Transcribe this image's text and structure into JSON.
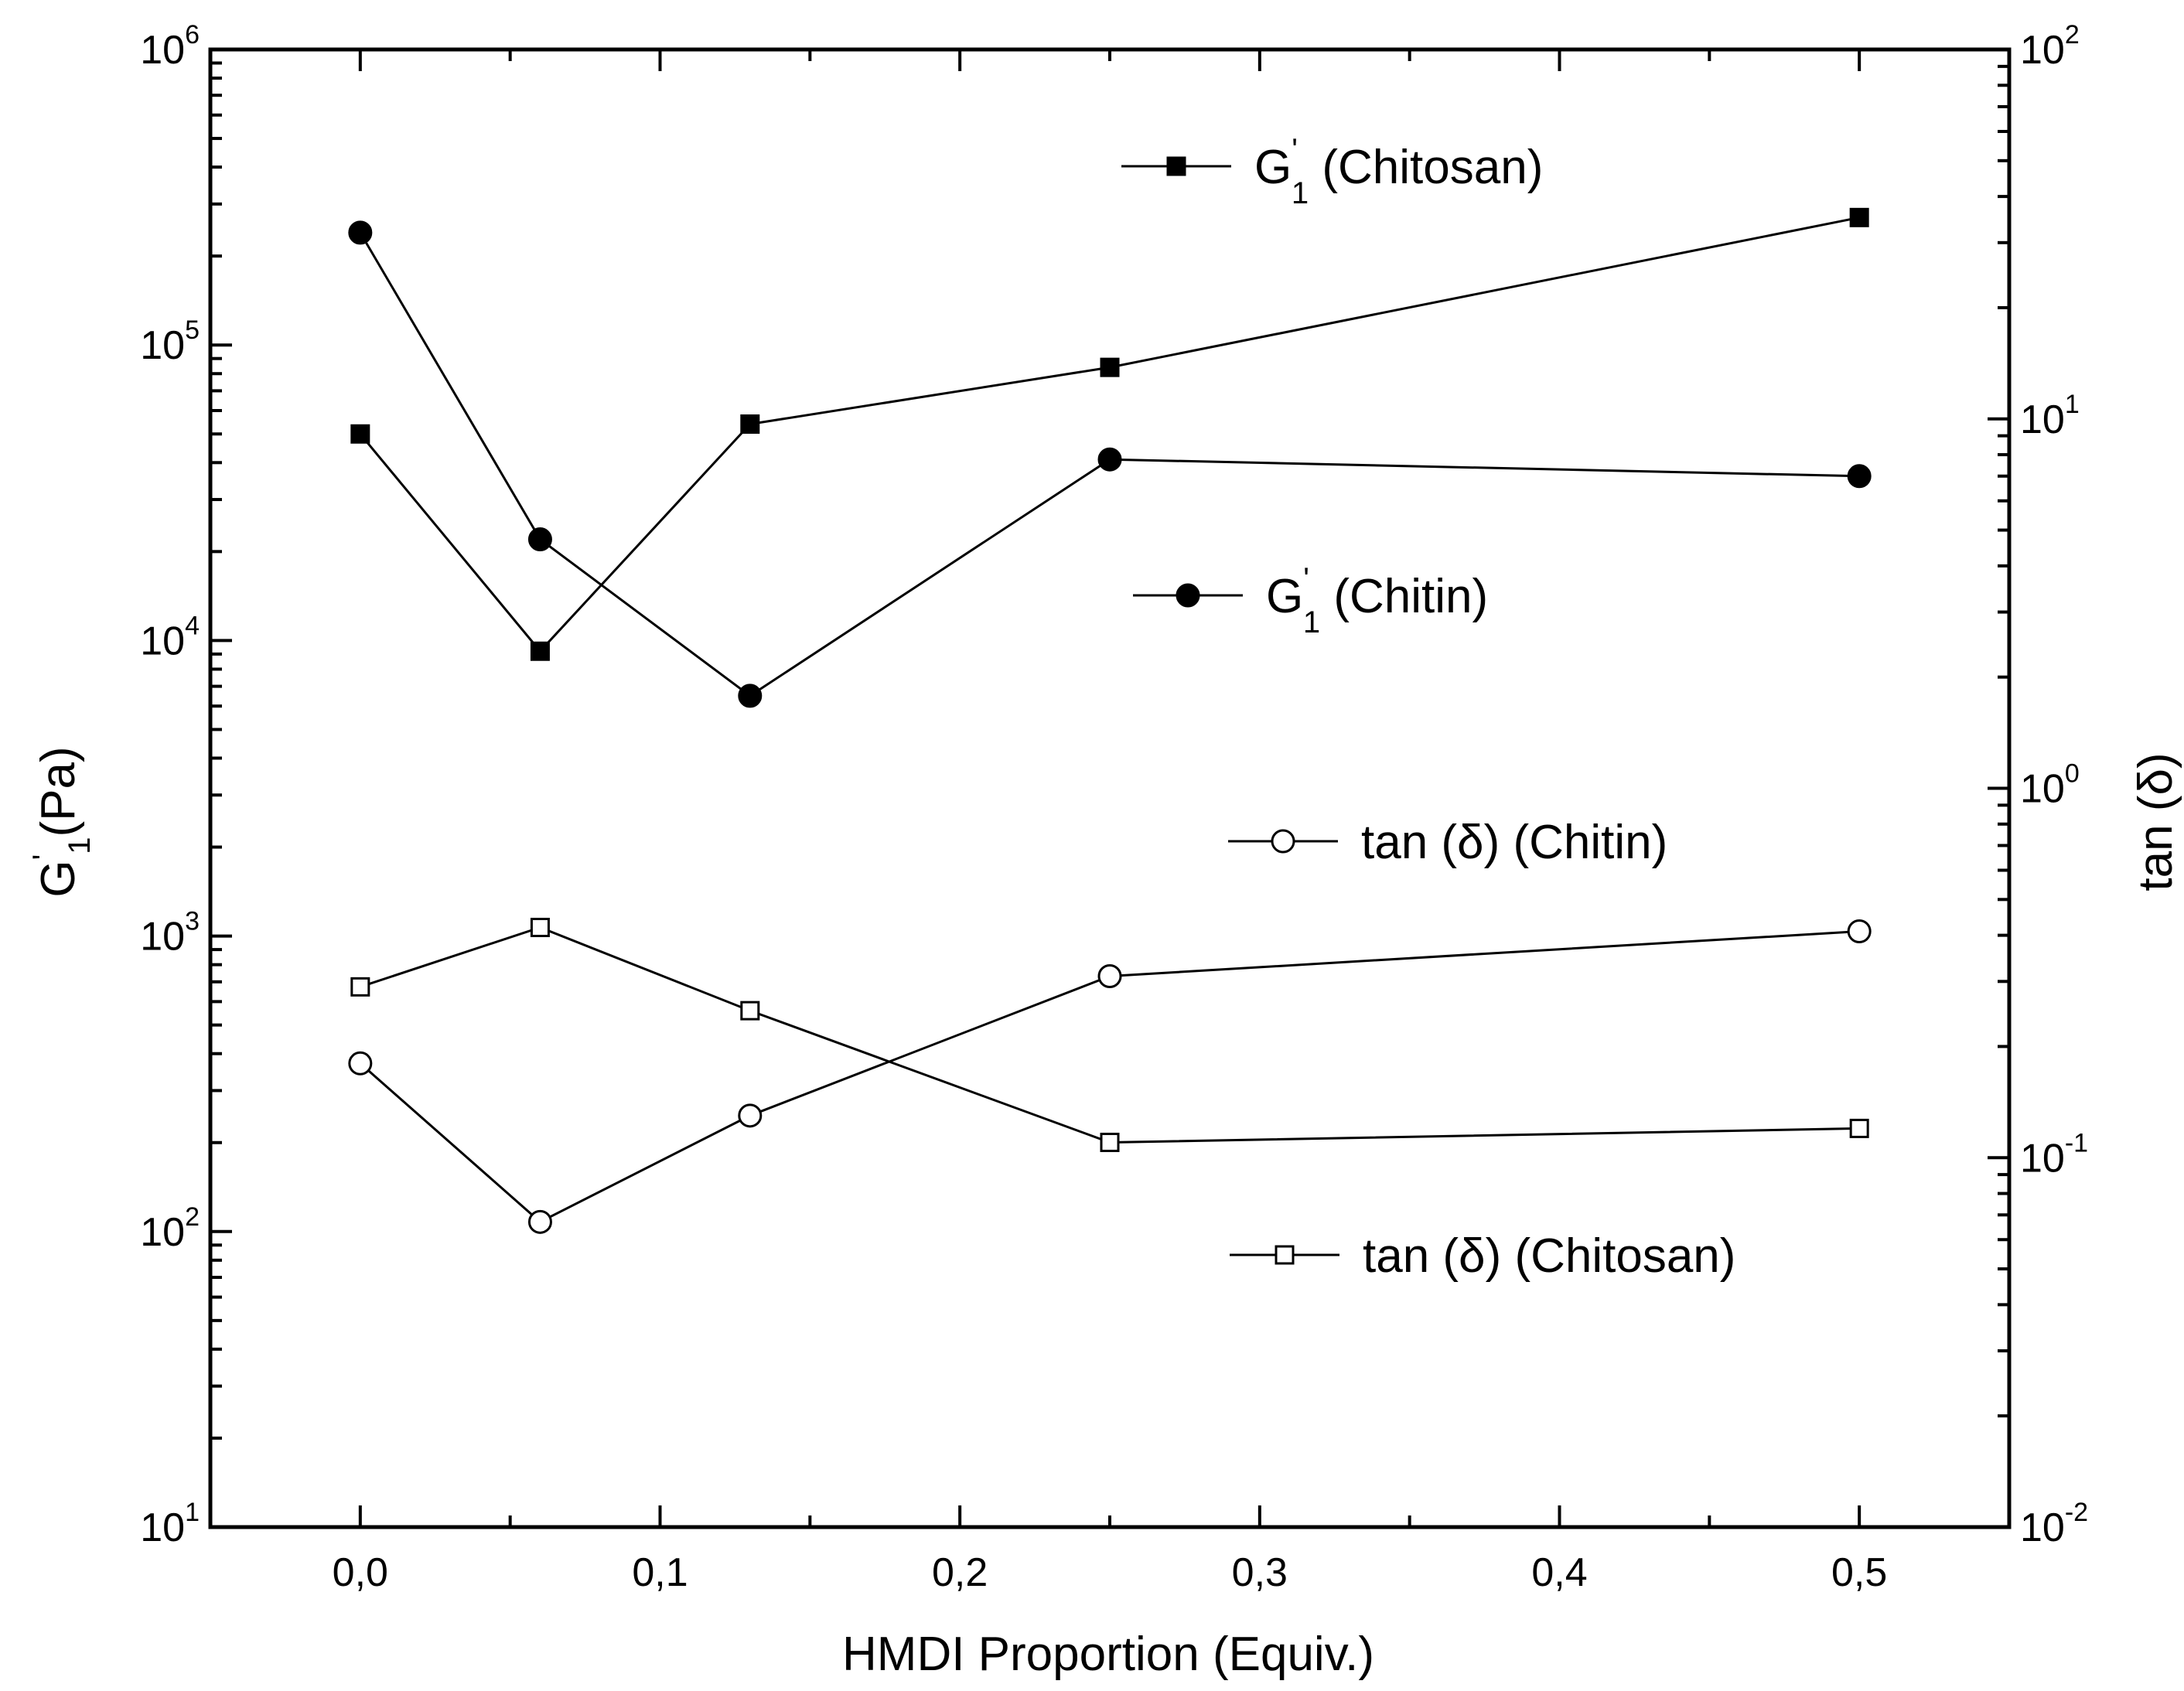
{
  "chart_data": {
    "type": "line",
    "x_title": "HMDI Proportion (Equiv.)",
    "y_left_title": {
      "main": "G",
      "prime": "'",
      "sub": "1",
      "rest": "(Pa)"
    },
    "y_right_title": "tan (δ)",
    "xlim": [
      -0.05,
      0.55
    ],
    "x_ticks": [
      {
        "value": 0.0,
        "label": "0,0"
      },
      {
        "value": 0.1,
        "label": "0,1"
      },
      {
        "value": 0.2,
        "label": "0,2"
      },
      {
        "value": 0.3,
        "label": "0,3"
      },
      {
        "value": 0.4,
        "label": "0,4"
      },
      {
        "value": 0.5,
        "label": "0,5"
      }
    ],
    "x_minor_ticks": [
      -0.05,
      0.05,
      0.15,
      0.25,
      0.35,
      0.45,
      0.55
    ],
    "y_left": {
      "scale": "log",
      "range": [
        10,
        1000000
      ],
      "ticks": [
        {
          "value": 10,
          "base": "10",
          "exp": "1"
        },
        {
          "value": 100,
          "base": "10",
          "exp": "2"
        },
        {
          "value": 1000,
          "base": "10",
          "exp": "3"
        },
        {
          "value": 10000,
          "base": "10",
          "exp": "4"
        },
        {
          "value": 100000,
          "base": "10",
          "exp": "5"
        },
        {
          "value": 1000000,
          "base": "10",
          "exp": "6"
        }
      ]
    },
    "y_right": {
      "scale": "log",
      "range": [
        0.01,
        100
      ],
      "ticks": [
        {
          "value": 0.01,
          "base": "10",
          "exp": "-2"
        },
        {
          "value": 0.1,
          "base": "10",
          "exp": "-1"
        },
        {
          "value": 1,
          "base": "10",
          "exp": "0"
        },
        {
          "value": 10,
          "base": "10",
          "exp": "1"
        },
        {
          "value": 100,
          "base": "10",
          "exp": "2"
        }
      ]
    },
    "series": [
      {
        "key": "g1-chitosan",
        "legend": {
          "main": "G",
          "prime": "'",
          "sub": "1",
          "rest": " (Chitosan)"
        },
        "axis": "left",
        "marker": "square",
        "filled": true,
        "x": [
          0.0,
          0.06,
          0.13,
          0.25,
          0.5
        ],
        "y": [
          50000,
          9200,
          54000,
          84000,
          270000
        ]
      },
      {
        "key": "g1-chitin",
        "legend": {
          "main": "G",
          "prime": "'",
          "sub": "1",
          "rest": " (Chitin)"
        },
        "axis": "left",
        "marker": "circle",
        "filled": true,
        "x": [
          0.0,
          0.06,
          0.13,
          0.25,
          0.5
        ],
        "y": [
          240000,
          22000,
          6500,
          41000,
          36000
        ]
      },
      {
        "key": "tan-chitin",
        "legend": {
          "main": "tan (δ) (Chitin)",
          "prime": "",
          "sub": "",
          "rest": ""
        },
        "axis": "right",
        "marker": "circle",
        "filled": false,
        "x": [
          0.0,
          0.06,
          0.13,
          0.25,
          0.5
        ],
        "y": [
          0.18,
          0.067,
          0.13,
          0.31,
          0.41
        ]
      },
      {
        "key": "tan-chitosan",
        "legend": {
          "main": "tan (δ) (Chitosan)",
          "prime": "",
          "sub": "",
          "rest": ""
        },
        "axis": "right",
        "marker": "square",
        "filled": false,
        "x": [
          0.0,
          0.06,
          0.13,
          0.25,
          0.5
        ],
        "y": [
          0.29,
          0.42,
          0.25,
          0.11,
          0.12
        ]
      }
    ],
    "legend_placement": "inside, next to each series",
    "grid": false
  }
}
